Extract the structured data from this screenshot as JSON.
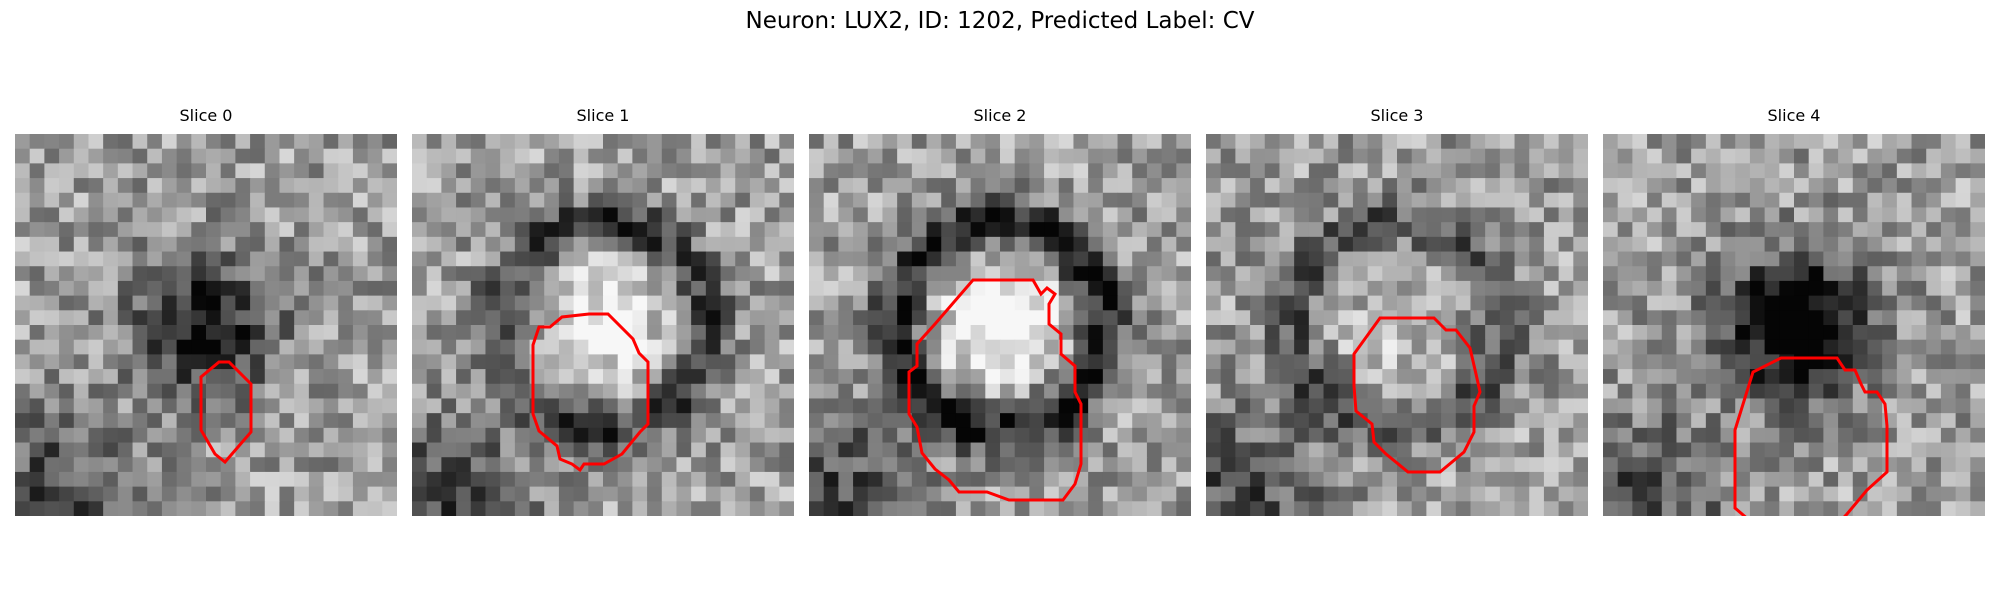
{
  "figure": {
    "title": "Neuron: LUX2, ID: 1202, Predicted Label: CV"
  },
  "contour_color": "#ff0000",
  "slices": [
    {
      "title": "Slice 0",
      "seed": 11,
      "dark_blob": 0.55,
      "ring": 0.0,
      "inner_bright": 0.0
    },
    {
      "title": "Slice 1",
      "seed": 23,
      "dark_blob": 0.0,
      "ring": 0.75,
      "inner_bright": 0.35
    },
    {
      "title": "Slice 2",
      "seed": 37,
      "dark_blob": 0.0,
      "ring": 1.0,
      "inner_bright": 0.45
    },
    {
      "title": "Slice 3",
      "seed": 41,
      "dark_blob": 0.2,
      "ring": 0.55,
      "inner_bright": 0.35
    },
    {
      "title": "Slice 4",
      "seed": 59,
      "dark_blob": 0.8,
      "ring": 0.0,
      "inner_bright": 0.0
    }
  ]
}
